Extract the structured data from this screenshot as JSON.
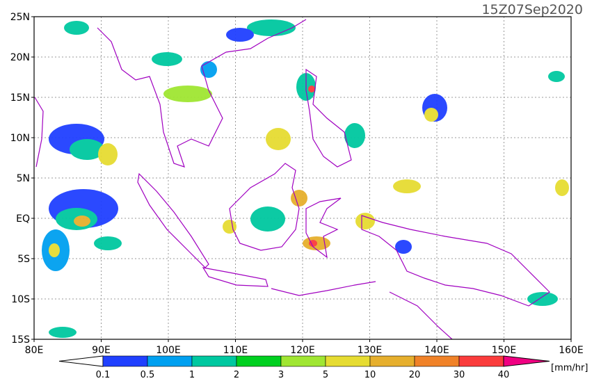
{
  "map": {
    "title": "15Z07Sep2020",
    "lon_labels": [
      "80E",
      "90E",
      "100E",
      "110E",
      "120E",
      "130E",
      "140E",
      "150E",
      "160E"
    ],
    "lat_labels": [
      "25N",
      "20N",
      "15N",
      "10N",
      "5N",
      "EQ",
      "5S",
      "10S",
      "15S"
    ]
  },
  "colorbar": {
    "levels": [
      0.1,
      0.5,
      1,
      2,
      3,
      5,
      10,
      20,
      30,
      40
    ],
    "colors": [
      "#ffffff",
      "#2040ff",
      "#00a0f0",
      "#00c8a0",
      "#00d020",
      "#a0e632",
      "#e6dc32",
      "#e6af2d",
      "#f08228",
      "#fa3c3c",
      "#f00082"
    ],
    "unit": "[mm/hr]"
  }
}
